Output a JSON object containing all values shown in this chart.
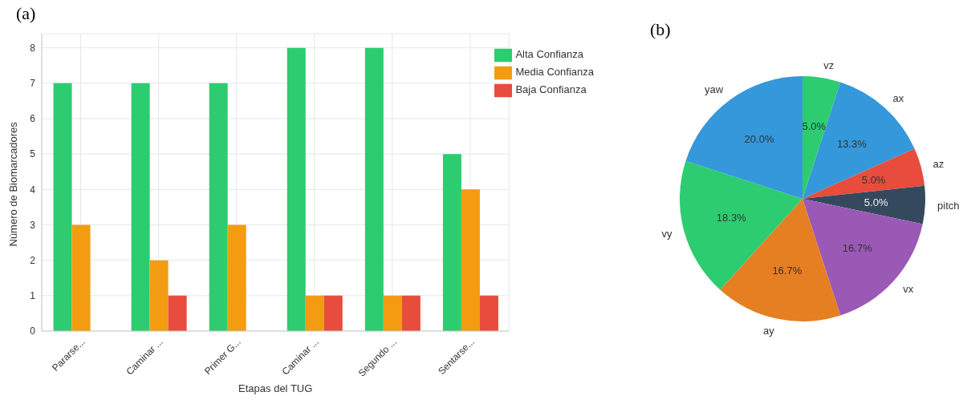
{
  "chart_data": [
    {
      "type": "bar",
      "title": "(a)",
      "xlabel": "Etapas del TUG",
      "ylabel": "Número de Biomarcadores",
      "categories": [
        "Pararse...",
        "Caminar ...",
        "Primer G...",
        "Caminar ...",
        "Segundo ...",
        "Sentarse..."
      ],
      "series": [
        {
          "name": "Alta Confianza",
          "color": "#2ecc71",
          "values": [
            7,
            7,
            7,
            8,
            8,
            5
          ]
        },
        {
          "name": "Media Confianza",
          "color": "#f39c12",
          "values": [
            3,
            2,
            3,
            1,
            1,
            4
          ]
        },
        {
          "name": "Baja Confianza",
          "color": "#e74c3c",
          "values": [
            0,
            1,
            0,
            1,
            1,
            1
          ]
        }
      ],
      "ylim": [
        0,
        8.4
      ],
      "yticks": [
        0,
        1,
        2,
        3,
        4,
        5,
        6,
        7,
        8
      ],
      "grid": true,
      "legend": "top right"
    },
    {
      "type": "pie",
      "title": "(b)",
      "categories": [
        "vz",
        "ax",
        "az",
        "pitch",
        "vx",
        "ay",
        "vy",
        "yaw"
      ],
      "values": [
        5.0,
        13.3,
        5.0,
        5.0,
        16.7,
        16.7,
        18.3,
        20.0
      ],
      "colors": [
        "#2ecc71",
        "#3498db",
        "#e74c3c",
        "#34495e",
        "#9b59b6",
        "#e67e22",
        "#2ecc71",
        "#3498db"
      ],
      "value_labels": [
        "5.0%",
        "13.3%",
        "5.0%",
        "5.0%",
        "16.7%",
        "16.7%",
        "18.3%",
        "20.0%"
      ]
    }
  ]
}
